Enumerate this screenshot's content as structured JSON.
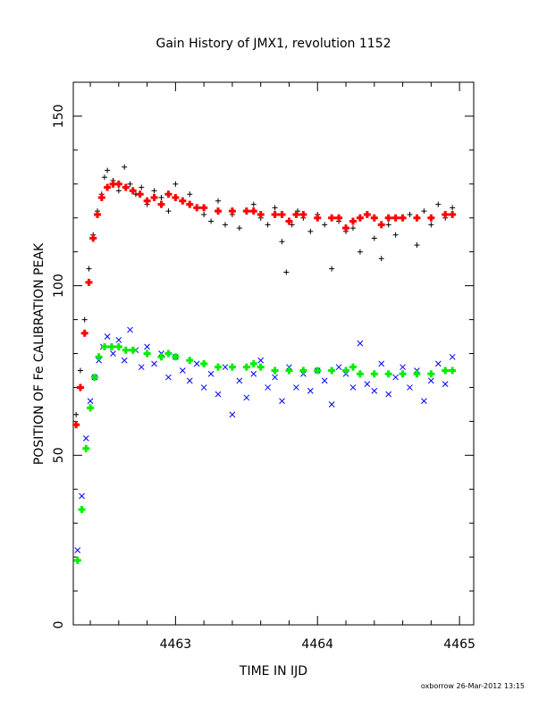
{
  "chart_data": {
    "type": "scatter",
    "title": "Gain History of JMX1, revolution 1152",
    "xlabel": "TIME IN IJD",
    "ylabel": "POSITION OF Fe CALIBRATION PEAK",
    "footer": "oxborrow 26-Mar-2012 13:15",
    "xlim": [
      4462.28,
      4465.1
    ],
    "ylim": [
      0,
      160
    ],
    "x_ticks": [
      4463,
      4464,
      4465
    ],
    "x_tick_labels": [
      "4463",
      "4464",
      "4465"
    ],
    "y_ticks": [
      0,
      50,
      100,
      150
    ],
    "y_tick_labels": [
      "0",
      "50",
      "100",
      "150"
    ],
    "grid": false,
    "series": [
      {
        "marker": "plus",
        "color": "#000000",
        "role": "raw-upper",
        "x": [
          4462.3,
          4462.33,
          4462.36,
          4462.39,
          4462.42,
          4462.45,
          4462.48,
          4462.5,
          4462.52,
          4462.56,
          4462.6,
          4462.64,
          4462.68,
          4462.72,
          4462.76,
          4462.8,
          4462.85,
          4462.9,
          4462.95,
          4463.0,
          4463.05,
          4463.1,
          4463.15,
          4463.2,
          4463.25,
          4463.3,
          4463.35,
          4463.4,
          4463.45,
          4463.5,
          4463.55,
          4463.6,
          4463.65,
          4463.7,
          4463.75,
          4463.78,
          4463.82,
          4463.86,
          4463.9,
          4463.95,
          4464.0,
          4464.05,
          4464.1,
          4464.15,
          4464.2,
          4464.25,
          4464.3,
          4464.35,
          4464.4,
          4464.45,
          4464.5,
          4464.55,
          4464.6,
          4464.65,
          4464.7,
          4464.75,
          4464.8,
          4464.85,
          4464.9,
          4464.95
        ],
        "y": [
          62,
          75,
          90,
          105,
          115,
          122,
          127,
          132,
          134,
          131,
          128,
          135,
          130,
          127,
          129,
          124,
          128,
          126,
          122,
          130,
          125,
          127,
          123,
          121,
          119,
          125,
          118,
          121,
          117,
          122,
          124,
          120,
          118,
          123,
          113,
          104,
          118,
          122,
          120,
          116,
          121,
          118,
          105,
          119,
          116,
          117,
          110,
          121,
          114,
          108,
          118,
          115,
          120,
          121,
          112,
          122,
          118,
          124,
          120,
          123
        ]
      },
      {
        "marker": "plus",
        "color": "#ff0000",
        "role": "smoothed-upper",
        "x": [
          4462.3,
          4462.33,
          4462.36,
          4462.39,
          4462.42,
          4462.45,
          4462.48,
          4462.52,
          4462.56,
          4462.6,
          4462.65,
          4462.7,
          4462.75,
          4462.8,
          4462.85,
          4462.9,
          4462.95,
          4463.0,
          4463.05,
          4463.1,
          4463.15,
          4463.2,
          4463.3,
          4463.4,
          4463.5,
          4463.55,
          4463.6,
          4463.7,
          4463.75,
          4463.8,
          4463.85,
          4463.9,
          4464.0,
          4464.1,
          4464.15,
          4464.2,
          4464.25,
          4464.3,
          4464.35,
          4464.4,
          4464.45,
          4464.5,
          4464.55,
          4464.6,
          4464.7,
          4464.8,
          4464.9,
          4464.95
        ],
        "y": [
          59,
          70,
          86,
          101,
          114,
          121,
          126,
          129,
          130,
          130,
          129,
          128,
          127,
          125,
          126,
          124,
          127,
          126,
          125,
          124,
          123,
          123,
          122,
          122,
          122,
          122,
          121,
          121,
          121,
          119,
          121,
          121,
          120,
          120,
          120,
          117,
          119,
          120,
          121,
          120,
          118,
          120,
          120,
          120,
          120,
          120,
          121,
          121
        ]
      },
      {
        "marker": "cross",
        "color": "#0000ff",
        "role": "raw-lower",
        "x": [
          4462.31,
          4462.34,
          4462.37,
          4462.4,
          4462.43,
          4462.46,
          4462.49,
          4462.52,
          4462.56,
          4462.6,
          4462.64,
          4462.68,
          4462.72,
          4462.76,
          4462.8,
          4462.85,
          4462.9,
          4462.95,
          4463.0,
          4463.05,
          4463.1,
          4463.15,
          4463.2,
          4463.25,
          4463.3,
          4463.35,
          4463.4,
          4463.45,
          4463.5,
          4463.55,
          4463.6,
          4463.65,
          4463.7,
          4463.75,
          4463.8,
          4463.85,
          4463.9,
          4463.95,
          4464.0,
          4464.05,
          4464.1,
          4464.15,
          4464.2,
          4464.25,
          4464.3,
          4464.35,
          4464.4,
          4464.45,
          4464.5,
          4464.55,
          4464.6,
          4464.65,
          4464.7,
          4464.75,
          4464.8,
          4464.85,
          4464.9,
          4464.95
        ],
        "y": [
          22,
          38,
          55,
          66,
          73,
          78,
          82,
          85,
          80,
          84,
          78,
          87,
          81,
          76,
          82,
          77,
          80,
          73,
          79,
          75,
          72,
          77,
          70,
          74,
          68,
          76,
          62,
          72,
          67,
          74,
          78,
          70,
          73,
          66,
          76,
          70,
          74,
          69,
          75,
          72,
          65,
          76,
          74,
          70,
          83,
          71,
          69,
          77,
          68,
          73,
          76,
          70,
          75,
          66,
          72,
          77,
          71,
          79
        ]
      },
      {
        "marker": "plus",
        "color": "#00ee00",
        "role": "smoothed-lower",
        "x": [
          4462.31,
          4462.34,
          4462.37,
          4462.4,
          4462.43,
          4462.46,
          4462.5,
          4462.55,
          4462.6,
          4462.65,
          4462.7,
          4462.8,
          4462.9,
          4462.95,
          4463.0,
          4463.1,
          4463.2,
          4463.3,
          4463.4,
          4463.5,
          4463.55,
          4463.6,
          4463.7,
          4463.8,
          4463.9,
          4464.0,
          4464.1,
          4464.2,
          4464.25,
          4464.3,
          4464.4,
          4464.5,
          4464.6,
          4464.7,
          4464.8,
          4464.9,
          4464.95
        ],
        "y": [
          19,
          34,
          52,
          64,
          73,
          79,
          82,
          82,
          82,
          81,
          81,
          80,
          79,
          80,
          79,
          78,
          77,
          76,
          76,
          76,
          77,
          76,
          75,
          75,
          75,
          75,
          75,
          75,
          76,
          74,
          74,
          74,
          74,
          74,
          74,
          75,
          75
        ]
      }
    ]
  }
}
